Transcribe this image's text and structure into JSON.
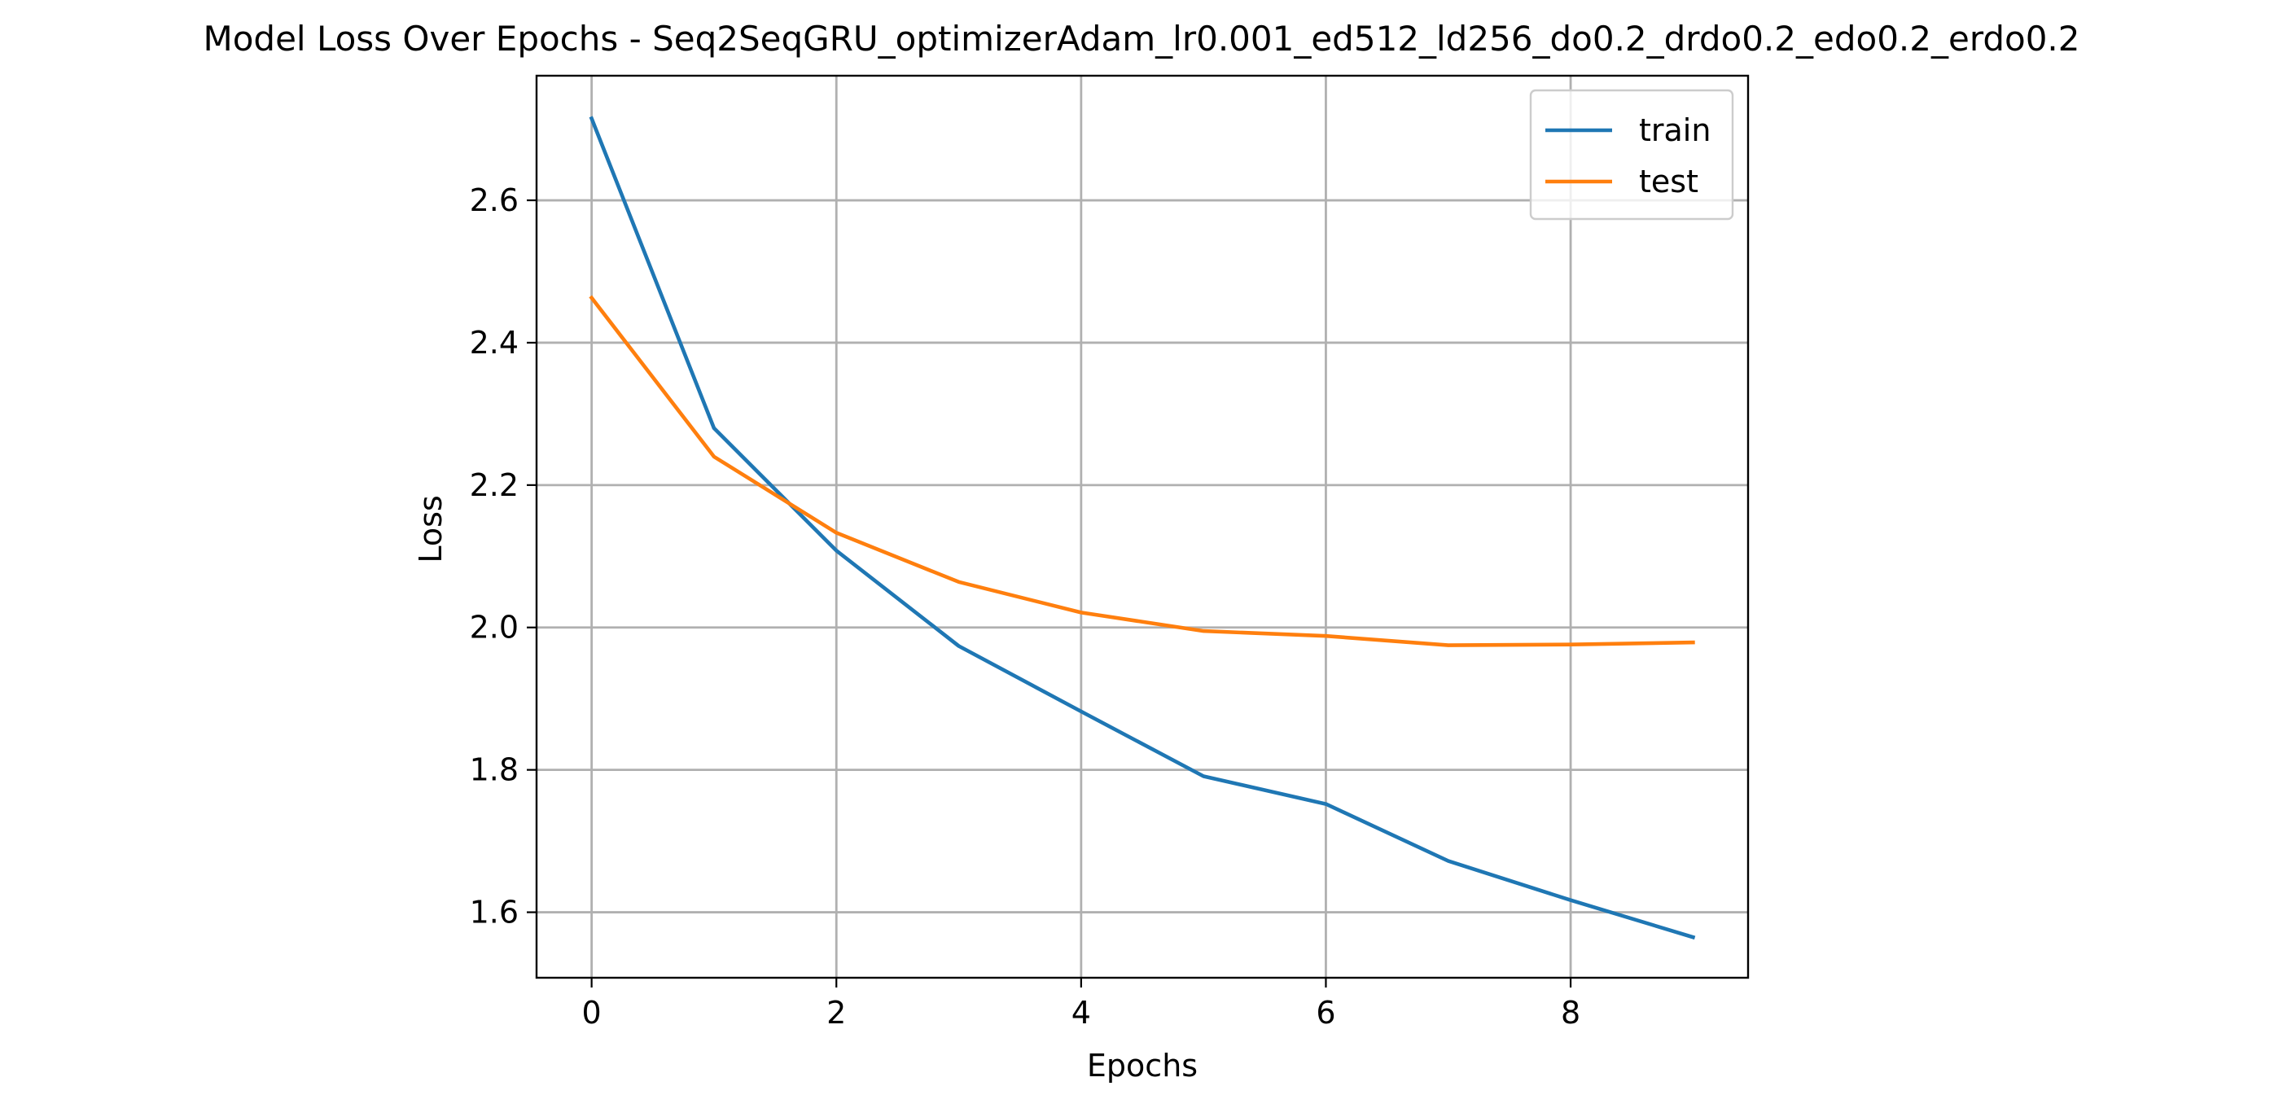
{
  "chart_data": {
    "type": "line",
    "title": "Model Loss Over Epochs - Seq2SeqGRU_optimizerAdam_lr0.001_ed512_ld256_do0.2_drdo0.2_edo0.2_erdo0.2",
    "xlabel": "Epochs",
    "ylabel": "Loss",
    "x": [
      0,
      1,
      2,
      3,
      4,
      5,
      6,
      7,
      8,
      9
    ],
    "xlim": [
      -0.45,
      9.45
    ],
    "ylim": [
      1.508,
      2.775
    ],
    "xticks": [
      0,
      2,
      4,
      6,
      8
    ],
    "yticks": [
      1.6,
      1.8,
      2.0,
      2.2,
      2.4,
      2.6
    ],
    "xtick_labels": [
      "0",
      "2",
      "4",
      "6",
      "8"
    ],
    "ytick_labels": [
      "1.6",
      "1.8",
      "2.0",
      "2.2",
      "2.4",
      "2.6"
    ],
    "grid": true,
    "legend_position": "top-right",
    "series": [
      {
        "name": "train",
        "color": "#1f77b4",
        "values": [
          2.715,
          2.28,
          2.108,
          1.974,
          1.882,
          1.791,
          1.752,
          1.672,
          1.617,
          1.565
        ]
      },
      {
        "name": "test",
        "color": "#ff7f0e",
        "values": [
          2.463,
          2.24,
          2.133,
          2.064,
          2.021,
          1.995,
          1.988,
          1.975,
          1.976,
          1.979
        ]
      }
    ]
  }
}
